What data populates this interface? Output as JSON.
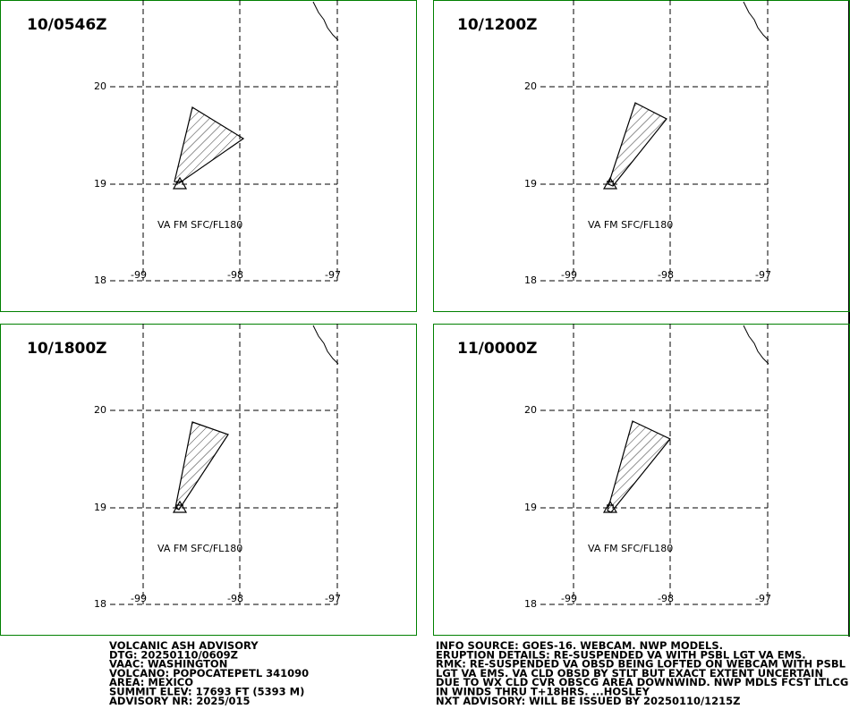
{
  "panels": [
    {
      "time": "10/0546Z"
    },
    {
      "time": "10/1200Z"
    },
    {
      "time": "10/1800Z"
    },
    {
      "time": "11/0000Z"
    }
  ],
  "lat_labels": [
    "20",
    "19",
    "18"
  ],
  "lon_labels": [
    "-99",
    "-98",
    "-97"
  ],
  "ash_label": "VA FM SFC/FL180",
  "advisory_left": [
    "VOLCANIC ASH ADVISORY",
    "DTG: 20250110/0609Z",
    "VAAC: WASHINGTON",
    "VOLCANO: POPOCATEPETL 341090",
    "AREA: MEXICO",
    "SUMMIT ELEV: 17693 FT (5393 M)",
    "ADVISORY NR: 2025/015"
  ],
  "advisory_right": [
    "INFO SOURCE: GOES-16. WEBCAM. NWP MODELS.",
    "ERUPTION DETAILS: RE-SUSPENDED VA WITH PSBL LGT VA EMS.",
    "RMK: RE-SUSPENDED VA OBSD BEING LOFTED ON WEBCAM WITH PSBL",
    "LGT VA EMS. VA CLD OBSD BY STLT BUT EXACT EXTENT UNCERTAIN",
    "DUE TO WX CLD CVR OBSCG AREA DOWNWIND. NWP MDLS FCST LTLCG",
    "IN WINDS THRU T+18HRS. ...HOSLEY",
    "NXT ADVISORY: WILL BE ISSUED BY 20250110/1215Z"
  ]
}
